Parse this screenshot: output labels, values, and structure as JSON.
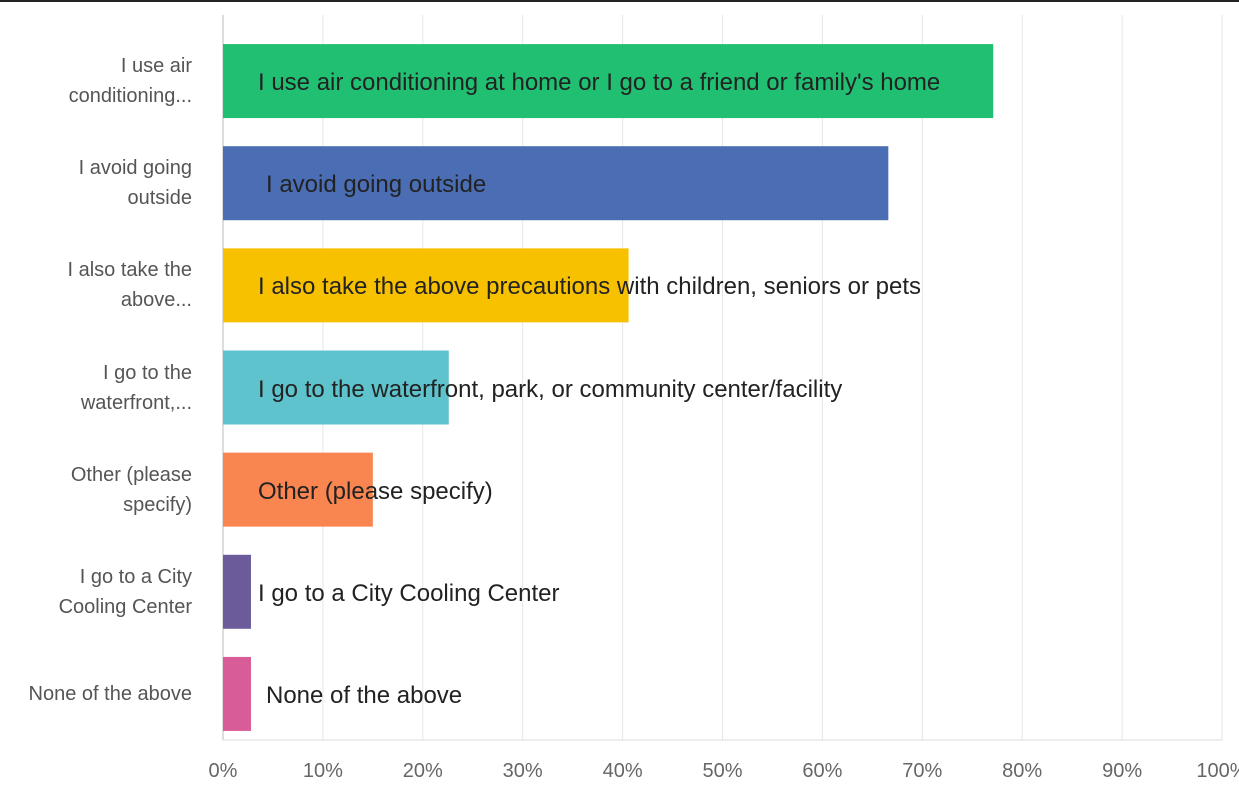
{
  "chart_data": {
    "type": "barh",
    "categories": [
      "I use air conditioning...",
      "I avoid going outside",
      "I also take the above...",
      "I go to the waterfront,...",
      "Other (please specify)",
      "I go to a City Cooling Center",
      "None of the above"
    ],
    "bar_labels": [
      "I use air conditioning at home or I go to a friend or family's home",
      "I avoid going outside",
      "I also take the above precautions with children, seniors or pets",
      "I go to the waterfront, park, or community center/facility",
      "Other (please specify)",
      "I go to a City Cooling Center",
      "None of the above"
    ],
    "values": [
      77.1,
      66.6,
      40.6,
      22.6,
      15.0,
      2.8,
      2.8
    ],
    "colors": [
      "#21bf72",
      "#4a6db3",
      "#f8c100",
      "#5ec3cc",
      "#f98550",
      "#6c5b9b",
      "#d75c97"
    ],
    "xlim": [
      0,
      100
    ],
    "xticks": [
      {
        "value": 0,
        "label": "0%"
      },
      {
        "value": 10,
        "label": "10%"
      },
      {
        "value": 20,
        "label": "20%"
      },
      {
        "value": 30,
        "label": "30%"
      },
      {
        "value": 40,
        "label": "40%"
      },
      {
        "value": 50,
        "label": "50%"
      },
      {
        "value": 60,
        "label": "60%"
      },
      {
        "value": 70,
        "label": "70%"
      },
      {
        "value": 80,
        "label": "80%"
      },
      {
        "value": 90,
        "label": "90%"
      },
      {
        "value": 100,
        "label": "100%"
      }
    ],
    "grid": true
  }
}
